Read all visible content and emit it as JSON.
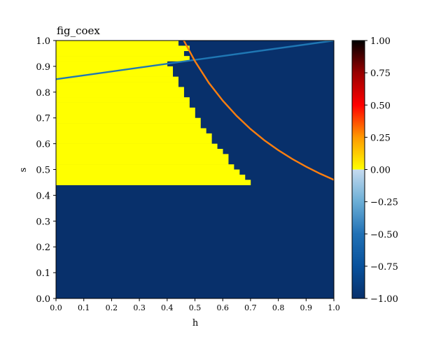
{
  "chart_data": {
    "type": "heatmap",
    "title": "fig_coex",
    "xlabel": "h",
    "ylabel": "s",
    "xlim": [
      0.0,
      1.0
    ],
    "ylim": [
      0.0,
      1.0
    ],
    "xticks": [
      "0.0",
      "0.1",
      "0.2",
      "0.3",
      "0.4",
      "0.5",
      "0.6",
      "0.7",
      "0.8",
      "0.9",
      "1.0"
    ],
    "yticks": [
      "0.0",
      "0.1",
      "0.2",
      "0.3",
      "0.4",
      "0.5",
      "0.6",
      "0.7",
      "0.8",
      "0.9",
      "1.0"
    ],
    "grid_resolution": 0.02,
    "heatmap_values": {
      "background": -1.0,
      "region": 0.0
    },
    "region_rows": [
      {
        "s_min": 0.44,
        "s_max": 0.46,
        "h_start": 0.0,
        "h_end": 0.7
      },
      {
        "s_min": 0.46,
        "s_max": 0.48,
        "h_start": 0.0,
        "h_end": 0.68
      },
      {
        "s_min": 0.48,
        "s_max": 0.5,
        "h_start": 0.0,
        "h_end": 0.66
      },
      {
        "s_min": 0.5,
        "s_max": 0.52,
        "h_start": 0.0,
        "h_end": 0.64
      },
      {
        "s_min": 0.52,
        "s_max": 0.54,
        "h_start": 0.0,
        "h_end": 0.62
      },
      {
        "s_min": 0.54,
        "s_max": 0.56,
        "h_start": 0.0,
        "h_end": 0.62
      },
      {
        "s_min": 0.56,
        "s_max": 0.58,
        "h_start": 0.0,
        "h_end": 0.6
      },
      {
        "s_min": 0.58,
        "s_max": 0.6,
        "h_start": 0.0,
        "h_end": 0.58
      },
      {
        "s_min": 0.6,
        "s_max": 0.62,
        "h_start": 0.0,
        "h_end": 0.56
      },
      {
        "s_min": 0.62,
        "s_max": 0.64,
        "h_start": 0.0,
        "h_end": 0.56
      },
      {
        "s_min": 0.64,
        "s_max": 0.66,
        "h_start": 0.0,
        "h_end": 0.54
      },
      {
        "s_min": 0.66,
        "s_max": 0.68,
        "h_start": 0.0,
        "h_end": 0.52
      },
      {
        "s_min": 0.68,
        "s_max": 0.7,
        "h_start": 0.0,
        "h_end": 0.52
      },
      {
        "s_min": 0.7,
        "s_max": 0.72,
        "h_start": 0.0,
        "h_end": 0.5
      },
      {
        "s_min": 0.72,
        "s_max": 0.74,
        "h_start": 0.0,
        "h_end": 0.5
      },
      {
        "s_min": 0.74,
        "s_max": 0.76,
        "h_start": 0.0,
        "h_end": 0.48
      },
      {
        "s_min": 0.76,
        "s_max": 0.78,
        "h_start": 0.0,
        "h_end": 0.48
      },
      {
        "s_min": 0.78,
        "s_max": 0.8,
        "h_start": 0.0,
        "h_end": 0.46
      },
      {
        "s_min": 0.8,
        "s_max": 0.82,
        "h_start": 0.0,
        "h_end": 0.46
      },
      {
        "s_min": 0.82,
        "s_max": 0.84,
        "h_start": 0.0,
        "h_end": 0.44
      },
      {
        "s_min": 0.84,
        "s_max": 0.86,
        "h_start": 0.0,
        "h_end": 0.44
      },
      {
        "s_min": 0.86,
        "s_max": 0.88,
        "h_start": 0.0,
        "h_end": 0.42
      },
      {
        "s_min": 0.88,
        "s_max": 0.9,
        "h_start": 0.0,
        "h_end": 0.42
      },
      {
        "s_min": 0.9,
        "s_max": 0.92,
        "h_start": 0.0,
        "h_end": 0.4
      },
      {
        "s_min": 0.92,
        "s_max": 0.94,
        "h_start": 0.0,
        "h_end": 0.48
      },
      {
        "s_min": 0.94,
        "s_max": 0.96,
        "h_start": 0.0,
        "h_end": 0.46
      },
      {
        "s_min": 0.96,
        "s_max": 0.98,
        "h_start": 0.0,
        "h_end": 0.48
      },
      {
        "s_min": 0.98,
        "s_max": 1.0,
        "h_start": 0.0,
        "h_end": 0.44
      }
    ],
    "series": [
      {
        "color": "#1f77b4",
        "type": "line",
        "x": [
          0.0,
          1.0
        ],
        "y": [
          0.85,
          1.0
        ]
      },
      {
        "color": "#ff7f0e",
        "type": "line",
        "x": [
          0.46,
          0.5,
          0.55,
          0.6,
          0.65,
          0.7,
          0.75,
          0.8,
          0.85,
          0.9,
          0.95,
          1.0
        ],
        "y": [
          1.0,
          0.92,
          0.836,
          0.767,
          0.708,
          0.657,
          0.613,
          0.575,
          0.541,
          0.511,
          0.484,
          0.46
        ]
      }
    ],
    "colorbar": {
      "min": -1.0,
      "max": 1.0,
      "ticks": [
        "1.00",
        "0.75",
        "0.50",
        "0.25",
        "0.00",
        "−0.25",
        "−0.50",
        "−0.75",
        "−1.00"
      ],
      "tick_values": [
        1.0,
        0.75,
        0.5,
        0.25,
        0.0,
        -0.25,
        -0.5,
        -0.75,
        -1.0
      ],
      "stops": [
        {
          "value": -1.0,
          "color": "#08306b"
        },
        {
          "value": -0.75,
          "color": "#08519c"
        },
        {
          "value": -0.5,
          "color": "#2171b5"
        },
        {
          "value": -0.25,
          "color": "#6baed6"
        },
        {
          "value": 0.0,
          "color": "#c6dbef"
        },
        {
          "value": 0.0,
          "color": "#ffff00"
        },
        {
          "value": 0.25,
          "color": "#ff9900"
        },
        {
          "value": 0.5,
          "color": "#ff0000"
        },
        {
          "value": 0.75,
          "color": "#990000"
        },
        {
          "value": 1.0,
          "color": "#000000"
        }
      ]
    },
    "colors": {
      "background": "#08306b",
      "region": "#ffff00",
      "axis": "#000000"
    }
  }
}
